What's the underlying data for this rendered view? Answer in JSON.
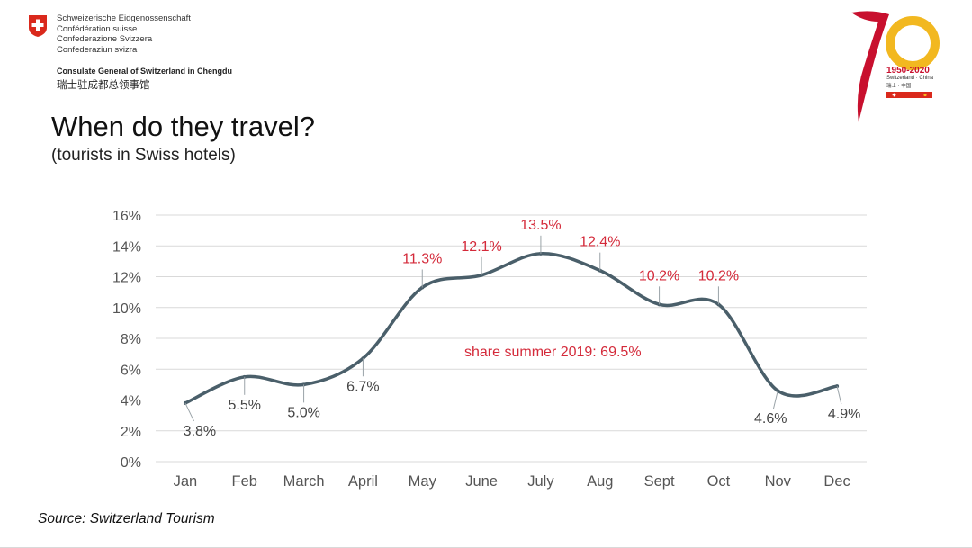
{
  "header": {
    "federal_names": [
      "Schweizerische Eidgenossenschaft",
      "Confédération suisse",
      "Confederazione Svizzera",
      "Confederaziun svizra"
    ],
    "consulate": "Consulate General of Switzerland in Chengdu",
    "consulate_cn": "瑞士驻成都总领事馆"
  },
  "anniversary": {
    "years": "1950-2020",
    "subtitle": "Switzerland · China",
    "subtitle_cn": "瑞士 · 中国"
  },
  "colors": {
    "swiss_red": "#da291c",
    "line": "#4a5f6a",
    "highlight_label": "#d42a3a",
    "normal_label": "#444444",
    "gold": "#f2b820"
  },
  "title": "When do they travel?",
  "subtitle": "(tourists in Swiss hotels)",
  "source": "Source: Switzerland Tourism",
  "chart_data": {
    "type": "line",
    "categories": [
      "Jan",
      "Feb",
      "March",
      "April",
      "May",
      "June",
      "July",
      "Aug",
      "Sept",
      "Oct",
      "Nov",
      "Dec"
    ],
    "values": [
      3.8,
      5.5,
      5.0,
      6.7,
      11.3,
      12.1,
      13.5,
      12.4,
      10.2,
      10.2,
      4.6,
      4.9
    ],
    "data_labels": [
      "3.8%",
      "5.5%",
      "5.0%",
      "6.7%",
      "11.3%",
      "12.1%",
      "13.5%",
      "12.4%",
      "10.2%",
      "10.2%",
      "4.6%",
      "4.9%"
    ],
    "highlighted": [
      false,
      false,
      false,
      false,
      true,
      true,
      true,
      true,
      true,
      true,
      false,
      false
    ],
    "y_ticks": [
      0,
      2,
      4,
      6,
      8,
      10,
      12,
      14,
      16
    ],
    "y_tick_labels": [
      "0%",
      "2%",
      "4%",
      "6%",
      "8%",
      "10%",
      "12%",
      "14%",
      "16%"
    ],
    "ylim": [
      0,
      16
    ],
    "grid": true,
    "annotation": "share summer 2019: 69.5%",
    "title": "",
    "xlabel": "",
    "ylabel": ""
  }
}
